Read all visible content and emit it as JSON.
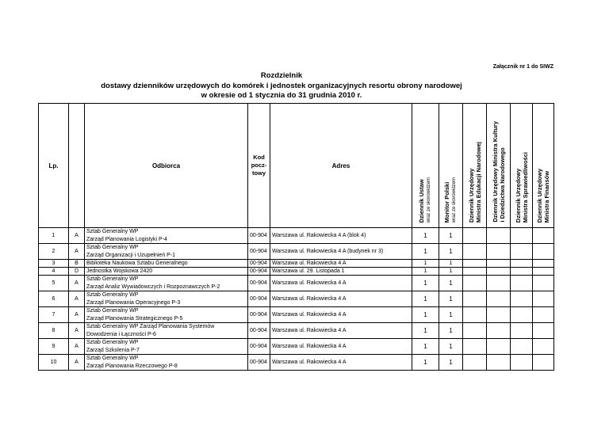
{
  "annex": "Załącznik nr 1 do SIWZ",
  "title": [
    "Rozdzielnik",
    "dostawy dzienników urzędowych do komórek i jednostek organizacyjnych resortu obrony narodowej",
    "w okresie od 1 stycznia do 31 grudnia 2010 r."
  ],
  "headers": {
    "lp": "Lp.",
    "recipient": "Odbiorca",
    "code": "Kod pocz-towy",
    "address": "Adres",
    "j1": {
      "title": "Dziennik Ustaw",
      "sub": "wraz ze skorowidzem"
    },
    "j2": {
      "title": "Monitor Polski",
      "sub": "wraz ze skorowidzem"
    },
    "j3": {
      "l1": "Dziennik Urzędowy",
      "l2": "Ministra Edukacji Narodowej"
    },
    "j4": {
      "l1": "Dziennik Urzędowy Ministra Kultury",
      "l2": "i Dziedzictwa Narodowego"
    },
    "j5": {
      "l1": "Dziennik Urzędowy",
      "l2": "Ministra Sprawiedliwości"
    },
    "j6": {
      "l1": "Dziennik Urzędowy",
      "l2": "Ministra Finansów"
    }
  },
  "rows": [
    {
      "lp": "1",
      "cat": "A",
      "r1": "Sztab Generalny WP",
      "r2": "Zarząd Planowania Logistyki P-4",
      "code": "00-904",
      "addr": "Warszawa  ul. Rakowiecka 4 A (blok 4)",
      "du": "1",
      "mp": "1"
    },
    {
      "lp": "2",
      "cat": "A",
      "r1": "Sztab Generalny WP",
      "r2": "Zarząd Organizacji i Uzupełnień P-1",
      "code": "00-904",
      "addr": "Warszawa  ul. Rakowiecka 4 A (budynek nr 3)",
      "du": "1",
      "mp": "1"
    },
    {
      "lp": "3",
      "cat": "B",
      "r1": "Biblioteka Naukowa Sztabu Generalnego",
      "r2": "",
      "code": "00-904",
      "addr": "Warszawa ul. Rakowiecka 4 A",
      "du": "1",
      "mp": "1"
    },
    {
      "lp": "4",
      "cat": "D",
      "r1": "Jednostka Wojskowa 2420",
      "r2": "",
      "code": "00-904",
      "addr": "Warszawa ul. 29. Listopada 1",
      "du": "1",
      "mp": "1"
    },
    {
      "lp": "5",
      "cat": "A",
      "r1": "Sztab Generalny WP",
      "r2": "Zarząd Analiz Wywiadowczych i Rozpoznawczych P-2",
      "code": "00-904",
      "addr": "Warszawa ul. Rakowiecka 4 A",
      "du": "1",
      "mp": "1"
    },
    {
      "lp": "6",
      "cat": "A",
      "r1": "Sztab Generalny WP",
      "r2": "Zarząd Planowania Operacyjnego P-3",
      "code": "00-904",
      "addr": "Warszawa ul. Rakowiecka 4 A",
      "du": "1",
      "mp": "1"
    },
    {
      "lp": "7",
      "cat": "A",
      "r1": "Sztab Generalny WP",
      "r2": "Zarząd Planowania Strategicznego P-5",
      "code": "00-904",
      "addr": "Warszawa ul. Rakowiecka 4 A",
      "du": "1",
      "mp": "1"
    },
    {
      "lp": "8",
      "cat": "A",
      "r1": "Sztab Generalny WP Zarząd Planowania Systemów",
      "r2": "Dowodzenia i Łączności P-6",
      "code": "00-904",
      "addr": "Warszawa ul. Rakowiecka 4 A",
      "du": "1",
      "mp": "1"
    },
    {
      "lp": "9",
      "cat": "A",
      "r1": "Sztab Generalny WP",
      "r2": "Zarząd Szkolenia P-7",
      "code": "00-904",
      "addr": "Warszawa ul. Rakowiecka 4 A",
      "du": "1",
      "mp": "1"
    },
    {
      "lp": "10",
      "cat": "A",
      "r1": "Sztab Generalny WP",
      "r2": "Zarząd Planowania Rzeczowego P-8",
      "code": "00-904",
      "addr": "Warszawa ul. Rakowiecka 4 A",
      "du": "1",
      "mp": "1"
    }
  ]
}
